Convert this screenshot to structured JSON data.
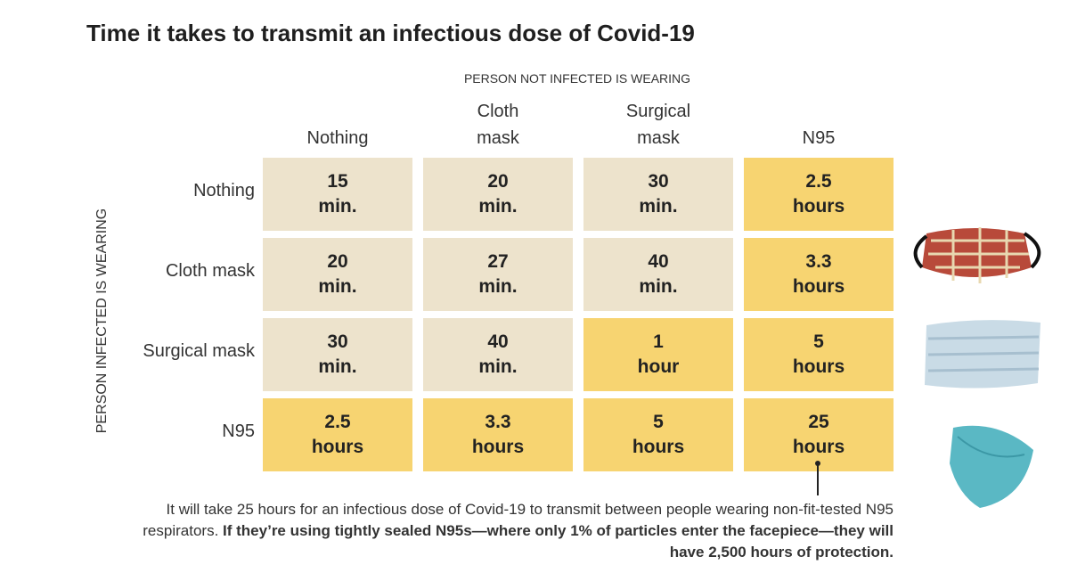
{
  "title": "Time it takes to transmit an infectious dose of Covid-19",
  "column_header": "PERSON NOT INFECTED IS WEARING",
  "row_header": "PERSON INFECTED IS WEARING",
  "columns": [
    [
      "Nothing"
    ],
    [
      "Cloth",
      "mask"
    ],
    [
      "Surgical",
      "mask"
    ],
    [
      "N95"
    ]
  ],
  "colors": {
    "light": "#ede3cc",
    "highlight": "#f7d471"
  },
  "rows": [
    {
      "label": "Nothing",
      "cells": [
        {
          "value": "15",
          "unit": "min.",
          "highlight": false
        },
        {
          "value": "20",
          "unit": "min.",
          "highlight": false
        },
        {
          "value": "30",
          "unit": "min.",
          "highlight": false
        },
        {
          "value": "2.5",
          "unit": "hours",
          "highlight": true
        }
      ]
    },
    {
      "label": "Cloth mask",
      "cells": [
        {
          "value": "20",
          "unit": "min.",
          "highlight": false
        },
        {
          "value": "27",
          "unit": "min.",
          "highlight": false
        },
        {
          "value": "40",
          "unit": "min.",
          "highlight": false
        },
        {
          "value": "3.3",
          "unit": "hours",
          "highlight": true
        }
      ]
    },
    {
      "label": "Surgical mask",
      "cells": [
        {
          "value": "30",
          "unit": "min.",
          "highlight": false
        },
        {
          "value": "40",
          "unit": "min.",
          "highlight": false
        },
        {
          "value": "1",
          "unit": "hour",
          "highlight": true
        },
        {
          "value": "5",
          "unit": "hours",
          "highlight": true
        }
      ]
    },
    {
      "label": "N95",
      "cells": [
        {
          "value": "2.5",
          "unit": "hours",
          "highlight": true
        },
        {
          "value": "3.3",
          "unit": "hours",
          "highlight": true
        },
        {
          "value": "5",
          "unit": "hours",
          "highlight": true
        },
        {
          "value": "25",
          "unit": "hours",
          "highlight": true
        }
      ]
    }
  ],
  "note": {
    "regular": "It will take 25 hours for an infectious dose of Covid-19 to transmit between people wearing non-fit-tested N95 respirators.",
    "bold": "If they’re using tightly sealed N95s—where only 1% of particles enter the facepiece—they will have 2,500 hours of protection."
  }
}
